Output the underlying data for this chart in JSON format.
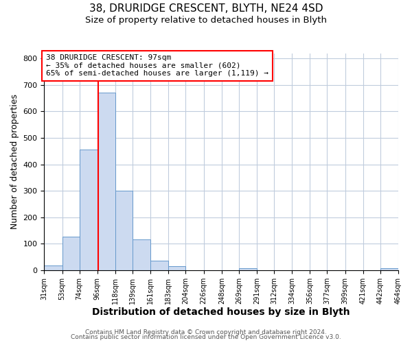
{
  "title1": "38, DRURIDGE CRESCENT, BLYTH, NE24 4SD",
  "title2": "Size of property relative to detached houses in Blyth",
  "xlabel": "Distribution of detached houses by size in Blyth",
  "ylabel": "Number of detached properties",
  "bin_edges": [
    31,
    53,
    74,
    96,
    118,
    139,
    161,
    183,
    204,
    226,
    248,
    269,
    291,
    312,
    334,
    356,
    377,
    399,
    421,
    442,
    464
  ],
  "bin_counts": [
    18,
    127,
    457,
    672,
    300,
    115,
    35,
    14,
    0,
    0,
    0,
    8,
    0,
    0,
    0,
    0,
    0,
    0,
    0,
    8
  ],
  "property_size": 97,
  "bar_facecolor": "#ccdaf0",
  "bar_edgecolor": "#6699cc",
  "vline_color": "red",
  "annotation_line1": "38 DRURIDGE CRESCENT: 97sqm",
  "annotation_line2": "← 35% of detached houses are smaller (602)",
  "annotation_line3": "65% of semi-detached houses are larger (1,119) →",
  "annotation_box_edgecolor": "red",
  "ylim": [
    0,
    820
  ],
  "tick_labels": [
    "31sqm",
    "53sqm",
    "74sqm",
    "96sqm",
    "118sqm",
    "139sqm",
    "161sqm",
    "183sqm",
    "204sqm",
    "226sqm",
    "248sqm",
    "269sqm",
    "291sqm",
    "312sqm",
    "334sqm",
    "356sqm",
    "377sqm",
    "399sqm",
    "421sqm",
    "442sqm",
    "464sqm"
  ],
  "yticks": [
    0,
    100,
    200,
    300,
    400,
    500,
    600,
    700,
    800
  ],
  "footer1": "Contains HM Land Registry data © Crown copyright and database right 2024.",
  "footer2": "Contains public sector information licensed under the Open Government Licence v3.0.",
  "background_color": "#ffffff",
  "grid_color": "#c0ccdd",
  "title1_fontsize": 11,
  "title2_fontsize": 9.5,
  "xlabel_fontsize": 10,
  "ylabel_fontsize": 9,
  "tick_fontsize": 7,
  "footer_fontsize": 6.5
}
